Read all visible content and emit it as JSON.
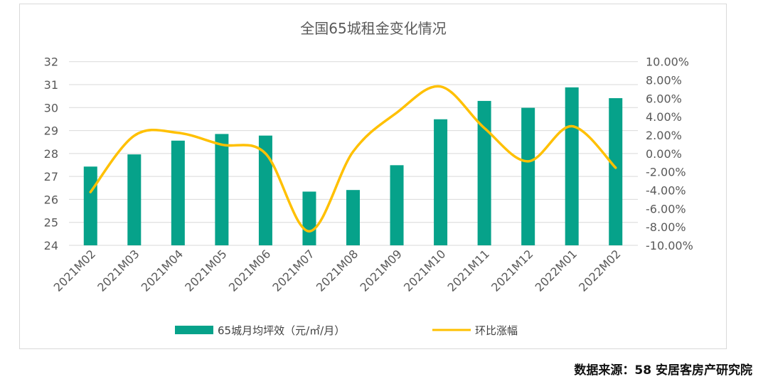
{
  "chart_data": {
    "type": "bar+line",
    "title": "全国65城租金变化情况",
    "categories": [
      "2021M02",
      "2021M03",
      "2021M04",
      "2021M05",
      "2021M06",
      "2021M07",
      "2021M08",
      "2021M09",
      "2021M10",
      "2021M11",
      "2021M12",
      "2022M01",
      "2022M02"
    ],
    "series": [
      {
        "name": "65城月均坪效（元/㎡/月）",
        "type": "bar",
        "axis": "left",
        "color": "#06A28A",
        "values": [
          27.43,
          27.96,
          28.56,
          28.85,
          28.78,
          26.34,
          26.41,
          27.49,
          29.49,
          30.29,
          29.99,
          30.88,
          30.41
        ]
      },
      {
        "name": "环比涨幅",
        "type": "line",
        "axis": "right",
        "smooth": true,
        "color": "#FFC000",
        "values": [
          -4.2,
          1.94,
          2.25,
          0.96,
          0.0,
          -8.47,
          0.2,
          4.45,
          7.29,
          2.77,
          -0.85,
          2.97,
          -1.55
        ]
      }
    ],
    "y_left": {
      "ylim": [
        24,
        32
      ],
      "ticks": [
        "24",
        "25",
        "26",
        "27",
        "28",
        "29",
        "30",
        "31",
        "32"
      ]
    },
    "y_right": {
      "ylim": [
        -10,
        10
      ],
      "ticks": [
        "-10.00%",
        "-8.00%",
        "-6.00%",
        "-4.00%",
        "-2.00%",
        "0.00%",
        "2.00%",
        "4.00%",
        "6.00%",
        "8.00%",
        "10.00%"
      ]
    },
    "grid": true,
    "legend_position": "bottom"
  },
  "source": "数据来源：58 安居客房产研究院"
}
